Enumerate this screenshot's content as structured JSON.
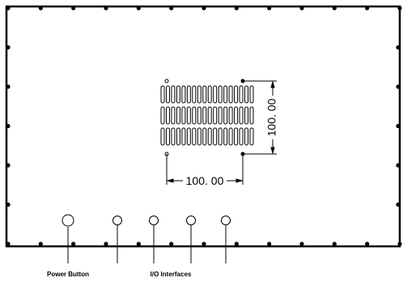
{
  "drawing": {
    "dimension_horizontal": "100. 00",
    "dimension_vertical": "100. 00",
    "vent_slot_rows": 3,
    "vent_slots_per_row": 18
  },
  "callouts": {
    "power_button": "Power Button",
    "io_interfaces": "I/O Interfaces"
  }
}
